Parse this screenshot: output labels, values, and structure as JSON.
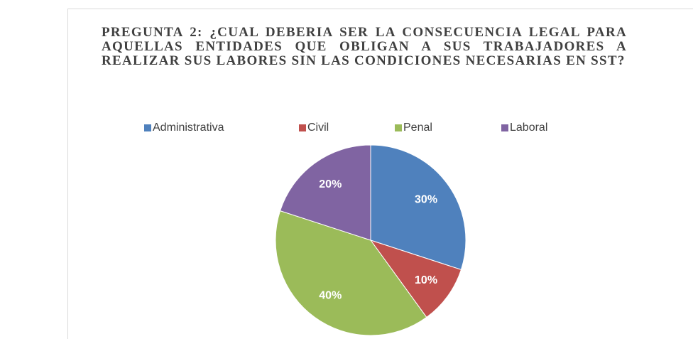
{
  "chart_data": {
    "type": "pie",
    "title": "PREGUNTA 2: ¿CUAL DEBERIA SER LA CONSECUENCIA LEGAL PARA AQUELLAS ENTIDADES QUE OBLIGAN A SUS TRABAJADORES A REALIZAR SUS LABORES SIN LAS CONDICIONES NECESARIAS EN SST?",
    "categories": [
      "Administrativa",
      "Civil",
      "Penal",
      "Laboral"
    ],
    "values": [
      30,
      10,
      40,
      20
    ],
    "value_labels": [
      "30%",
      "10%",
      "40%",
      "20%"
    ],
    "colors": [
      "#4f81bd",
      "#c0504d",
      "#9bbb59",
      "#8064a2"
    ],
    "legend": "top"
  }
}
